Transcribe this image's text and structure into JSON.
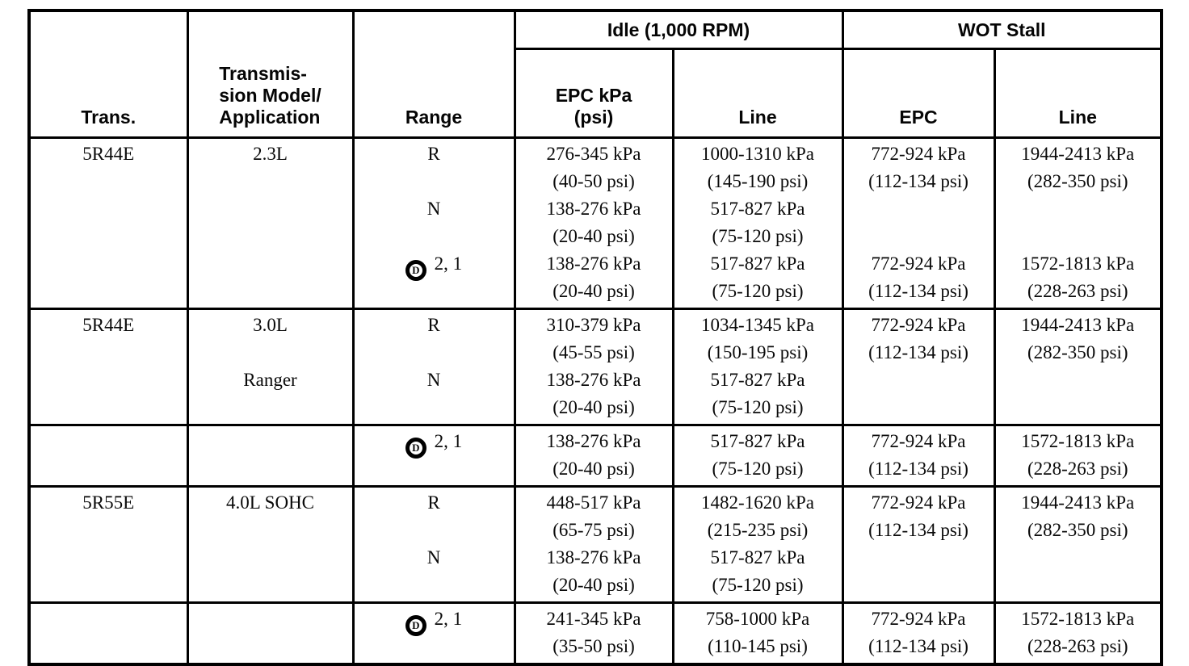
{
  "colors": {
    "line": "#000000",
    "text": "#0a0a0a",
    "background": "#ffffff"
  },
  "header": {
    "col_trans": "Trans.",
    "col_model": "Transmis-\nsion Model/\nApplication",
    "col_range": "Range",
    "group_idle": "Idle (1,000 RPM)",
    "group_wot": "WOT Stall",
    "col_idle_epc": "EPC kPa\n(psi)",
    "col_idle_line": "Line",
    "col_wot_epc": "EPC",
    "col_wot_line": "Line"
  },
  "table": {
    "drive_symbol": "D",
    "column_keys": [
      "trans",
      "model",
      "range",
      "idle_epc",
      "idle_line",
      "wot_epc",
      "wot_line"
    ],
    "bands": [
      {
        "trans": [
          "5R44E"
        ],
        "model": [
          "2.3L"
        ],
        "range": [
          "R",
          "",
          "N",
          "",
          {
            "drive": true,
            "text": "2, 1"
          },
          ""
        ],
        "idle_epc": [
          "276-345 kPa",
          "(40-50 psi)",
          "138-276 kPa",
          "(20-40 psi)",
          "138-276 kPa",
          "(20-40 psi)"
        ],
        "idle_line": [
          "1000-1310 kPa",
          "(145-190 psi)",
          "517-827 kPa",
          "(75-120 psi)",
          "517-827 kPa",
          "(75-120 psi)"
        ],
        "wot_epc": [
          "772-924 kPa",
          "(112-134 psi)",
          "",
          "",
          "772-924 kPa",
          "(112-134 psi)"
        ],
        "wot_line": [
          "1944-2413 kPa",
          "(282-350 psi)",
          "",
          "",
          "1572-1813 kPa",
          "(228-263 psi)"
        ]
      },
      {
        "trans": [
          "5R44E"
        ],
        "model": [
          "3.0L",
          "",
          "Ranger",
          ""
        ],
        "range": [
          "R",
          "",
          "N",
          ""
        ],
        "idle_epc": [
          "310-379 kPa",
          "(45-55 psi)",
          "138-276 kPa",
          "(20-40 psi)"
        ],
        "idle_line": [
          "1034-1345 kPa",
          "(150-195 psi)",
          "517-827 kPa",
          "(75-120 psi)"
        ],
        "wot_epc": [
          "772-924 kPa",
          "(112-134 psi)",
          "",
          ""
        ],
        "wot_line": [
          "1944-2413 kPa",
          "(282-350 psi)",
          "",
          ""
        ]
      },
      {
        "trans": [
          ""
        ],
        "model": [
          ""
        ],
        "range": [
          {
            "drive": true,
            "text": "2, 1"
          },
          ""
        ],
        "idle_epc": [
          "138-276 kPa",
          "(20-40 psi)"
        ],
        "idle_line": [
          "517-827 kPa",
          "(75-120 psi)"
        ],
        "wot_epc": [
          "772-924 kPa",
          "(112-134 psi)"
        ],
        "wot_line": [
          "1572-1813 kPa",
          "(228-263 psi)"
        ]
      },
      {
        "trans": [
          "5R55E"
        ],
        "model": [
          "4.0L SOHC"
        ],
        "range": [
          "R",
          "",
          "N",
          ""
        ],
        "idle_epc": [
          "448-517 kPa",
          "(65-75 psi)",
          "138-276 kPa",
          "(20-40 psi)"
        ],
        "idle_line": [
          "1482-1620 kPa",
          "(215-235 psi)",
          "517-827 kPa",
          "(75-120 psi)"
        ],
        "wot_epc": [
          "772-924 kPa",
          "(112-134 psi)",
          "",
          ""
        ],
        "wot_line": [
          "1944-2413 kPa",
          "(282-350 psi)",
          "",
          ""
        ]
      },
      {
        "trans": [
          ""
        ],
        "model": [
          ""
        ],
        "range": [
          {
            "drive": true,
            "text": "2, 1"
          },
          ""
        ],
        "idle_epc": [
          "241-345 kPa",
          "(35-50 psi)"
        ],
        "idle_line": [
          "758-1000 kPa",
          "(110-145 psi)"
        ],
        "wot_epc": [
          "772-924 kPa",
          "(112-134 psi)"
        ],
        "wot_line": [
          "1572-1813 kPa",
          "(228-263 psi)"
        ]
      }
    ]
  }
}
